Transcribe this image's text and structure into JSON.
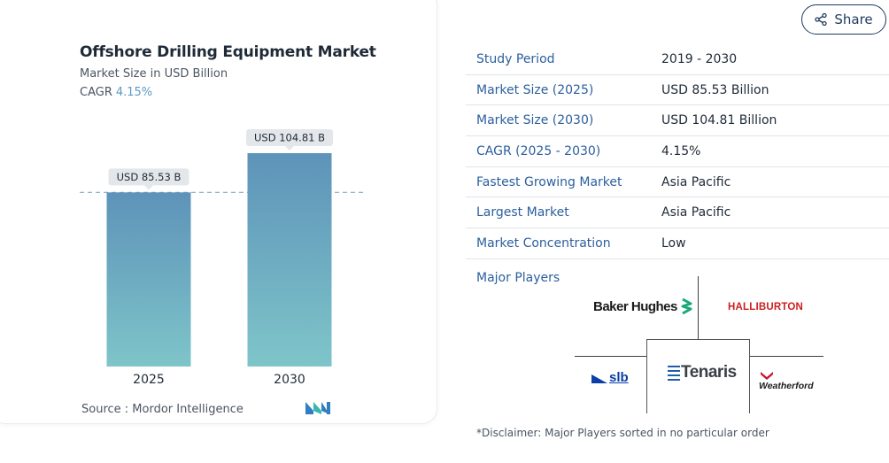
{
  "chart": {
    "title": "Offshore Drilling Equipment Market",
    "subtitle": "Market Size in USD Billion",
    "cagr_label": "CAGR",
    "cagr_value": "4.15%",
    "source": "Source :  Mordor Intelligence"
  },
  "chart_data": {
    "type": "bar",
    "title": "Offshore Drilling Equipment Market",
    "subtitle": "Market Size in USD Billion",
    "categories": [
      "2025",
      "2030"
    ],
    "values": [
      85.53,
      104.81
    ],
    "data_labels": [
      "USD 85.53 B",
      "USD 104.81 B"
    ],
    "ylabel": "",
    "xlabel": "",
    "ylim": [
      0,
      110
    ],
    "grid": false,
    "reference_line": 85.53,
    "colors": {
      "bar_top": "#5e93b9",
      "bar_bottom": "#7ec5c9"
    }
  },
  "share": {
    "label": "Share",
    "icon": "share-icon"
  },
  "info_table": [
    {
      "label": "Study Period",
      "value": "2019 - 2030"
    },
    {
      "label": "Market Size (2025)",
      "value": "USD 85.53 Billion"
    },
    {
      "label": "Market Size (2030)",
      "value": "USD 104.81 Billion"
    },
    {
      "label": "CAGR (2025 - 2030)",
      "value": "4.15%"
    },
    {
      "label": "Fastest Growing Market",
      "value": "Asia Pacific"
    },
    {
      "label": "Largest Market",
      "value": "Asia Pacific"
    },
    {
      "label": "Market Concentration",
      "value": "Low"
    }
  ],
  "players": {
    "label": "Major Players",
    "logos": {
      "baker_hughes": "Baker Hughes",
      "halliburton": "HALLIBURTON",
      "slb": "slb",
      "tenaris": "Tenaris",
      "weatherford": "Weatherford"
    },
    "disclaimer": "*Disclaimer: Major Players sorted in no particular order"
  },
  "colors": {
    "accent": "#2b5f9e",
    "cagr": "#5b9bc6",
    "halliburton": "#cc1f1f",
    "weatherford": "#c8102e",
    "slb": "#0b3ea8"
  }
}
